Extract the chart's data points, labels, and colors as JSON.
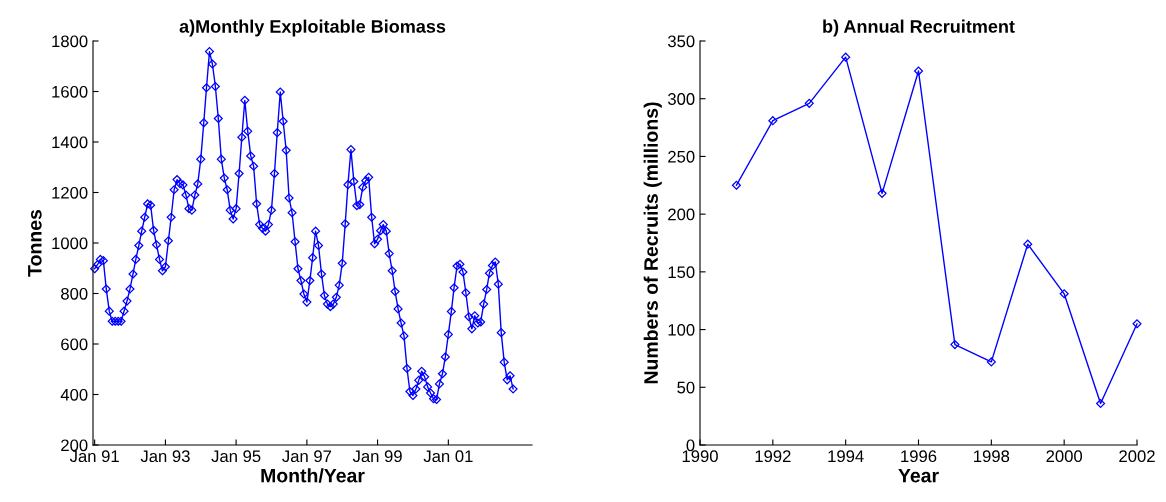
{
  "chart_data": [
    {
      "type": "line",
      "title": "a)Monthly Exploitable Biomass",
      "xlabel": "Month/Year",
      "ylabel": "Tonnes",
      "marker": "diamond",
      "line_style": "solid",
      "grid": false,
      "x": [
        "1991-01",
        "1991-02",
        "1991-03",
        "1991-04",
        "1991-05",
        "1991-06",
        "1991-07",
        "1991-08",
        "1991-09",
        "1991-10",
        "1991-11",
        "1991-12",
        "1992-01",
        "1992-02",
        "1992-03",
        "1992-04",
        "1992-05",
        "1992-06",
        "1992-07",
        "1992-08",
        "1992-09",
        "1992-10",
        "1992-11",
        "1992-12",
        "1993-01",
        "1993-02",
        "1993-03",
        "1993-04",
        "1993-05",
        "1993-06",
        "1993-07",
        "1993-08",
        "1993-09",
        "1993-10",
        "1993-11",
        "1993-12",
        "1994-01",
        "1994-02",
        "1994-03",
        "1994-04",
        "1994-05",
        "1994-06",
        "1994-07",
        "1994-08",
        "1994-09",
        "1994-10",
        "1994-11",
        "1994-12",
        "1995-01",
        "1995-02",
        "1995-03",
        "1995-04",
        "1995-05",
        "1995-06",
        "1995-07",
        "1995-08",
        "1995-09",
        "1995-10",
        "1995-11",
        "1995-12",
        "1996-01",
        "1996-02",
        "1996-03",
        "1996-04",
        "1996-05",
        "1996-06",
        "1996-07",
        "1996-08",
        "1996-09",
        "1996-10",
        "1996-11",
        "1996-12",
        "1997-01",
        "1997-02",
        "1997-03",
        "1997-04",
        "1997-05",
        "1997-06",
        "1997-07",
        "1997-08",
        "1997-09",
        "1997-10",
        "1997-11",
        "1997-12",
        "1998-01",
        "1998-02",
        "1998-03",
        "1998-04",
        "1998-05",
        "1998-06",
        "1998-07",
        "1998-08",
        "1998-09",
        "1998-10",
        "1998-11",
        "1998-12",
        "1999-01",
        "1999-02",
        "1999-03",
        "1999-04",
        "1999-05",
        "1999-06",
        "1999-07",
        "1999-08",
        "1999-09",
        "1999-10",
        "1999-11",
        "1999-12",
        "2000-01",
        "2000-02",
        "2000-03",
        "2000-04",
        "2000-05",
        "2000-06",
        "2000-07",
        "2000-08",
        "2000-09",
        "2000-10",
        "2000-11",
        "2000-12",
        "2001-01",
        "2001-02",
        "2001-03",
        "2001-04",
        "2001-05",
        "2001-06",
        "2001-07",
        "2001-08",
        "2001-09",
        "2001-10",
        "2001-11",
        "2001-12",
        "2002-01",
        "2002-02",
        "2002-03",
        "2002-04",
        "2002-05",
        "2002-06",
        "2002-07",
        "2002-08",
        "2002-09",
        "2002-10",
        "2002-11"
      ],
      "series": [
        {
          "color": "#0000ff",
          "values": [
            898,
            915,
            935,
            930,
            818,
            730,
            690,
            690,
            690,
            690,
            730,
            770,
            818,
            877,
            935,
            990,
            1047,
            1102,
            1155,
            1150,
            1050,
            993,
            935,
            890,
            906,
            1009,
            1102,
            1211,
            1251,
            1235,
            1230,
            1190,
            1136,
            1130,
            1190,
            1234,
            1332,
            1476,
            1615,
            1758,
            1709,
            1620,
            1493,
            1332,
            1257,
            1211,
            1130,
            1095,
            1136,
            1275,
            1419,
            1565,
            1443,
            1345,
            1304,
            1155,
            1073,
            1058,
            1047,
            1073,
            1130,
            1275,
            1437,
            1598,
            1482,
            1367,
            1178,
            1120,
            1005,
            898,
            851,
            798,
            766,
            851,
            942,
            1047,
            990,
            877,
            792,
            758,
            748,
            758,
            785,
            833,
            920,
            1076,
            1231,
            1370,
            1244,
            1148,
            1152,
            1221,
            1247,
            1260,
            1102,
            997,
            1015,
            1049,
            1073,
            1047,
            958,
            890,
            808,
            739,
            683,
            632,
            503,
            412,
            396,
            422,
            456,
            492,
            470,
            430,
            406,
            383,
            380,
            442,
            482,
            549,
            638,
            729,
            823,
            909,
            916,
            885,
            803,
            708,
            660,
            712,
            683,
            687,
            758,
            816,
            880,
            911,
            925,
            837,
            645,
            528,
            458,
            474,
            422
          ]
        }
      ],
      "xlim": [
        "1990-12-15",
        "2003-05-15"
      ],
      "xticks": [
        {
          "value": "1991-01",
          "label": "Jan 91"
        },
        {
          "value": "1993-01",
          "label": "Jan 93"
        },
        {
          "value": "1995-01",
          "label": "Jan 95"
        },
        {
          "value": "1997-01",
          "label": "Jan 97"
        },
        {
          "value": "1999-01",
          "label": "Jan 99"
        },
        {
          "value": "2001-01",
          "label": "Jan 01"
        }
      ],
      "ylim": [
        200,
        1800
      ],
      "yticks": [
        200,
        400,
        600,
        800,
        1000,
        1200,
        1400,
        1600,
        1800
      ]
    },
    {
      "type": "line",
      "title": "b) Annual Recruitment",
      "xlabel": "Year",
      "ylabel": "Numbers of Recruits (millions)",
      "marker": "diamond",
      "line_style": "solid",
      "grid": false,
      "x": [
        1991,
        1992,
        1993,
        1994,
        1995,
        1996,
        1997,
        1998,
        1999,
        2000,
        2001,
        2002
      ],
      "series": [
        {
          "color": "#0000ff",
          "values": [
            225,
            281,
            296,
            336,
            218,
            324,
            87,
            72,
            174,
            131,
            36,
            105
          ]
        }
      ],
      "xlim": [
        1990,
        2002
      ],
      "xticks": [
        1990,
        1992,
        1994,
        1996,
        1998,
        2000,
        2002
      ],
      "ylim": [
        0,
        350
      ],
      "yticks": [
        0,
        50,
        100,
        150,
        200,
        250,
        300,
        350
      ]
    }
  ]
}
